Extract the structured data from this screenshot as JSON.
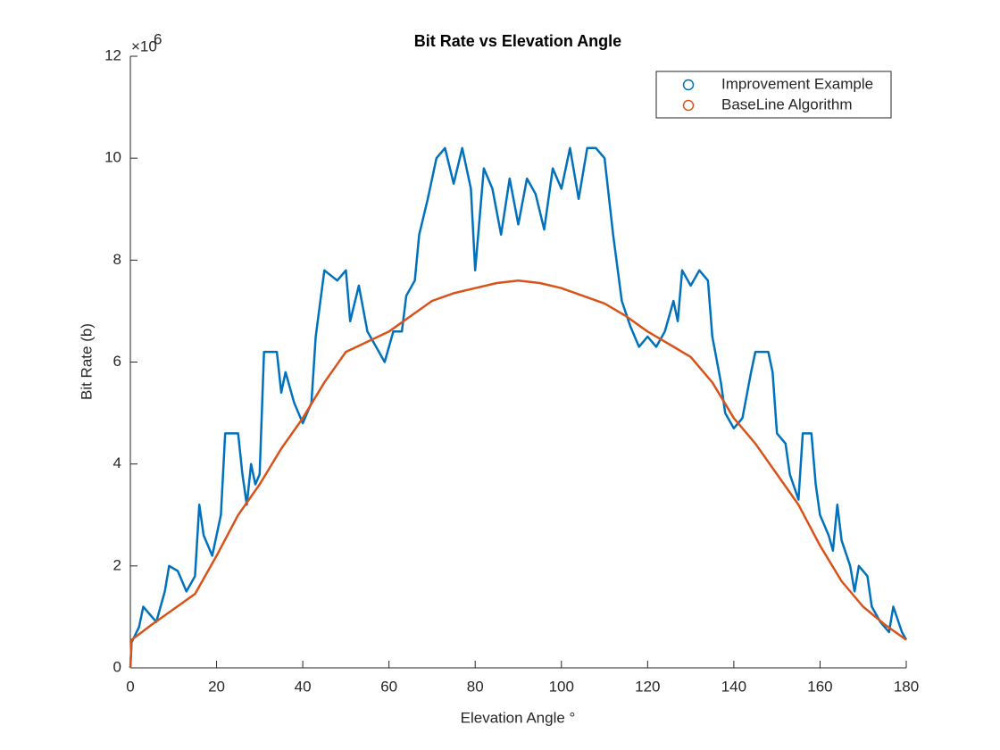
{
  "chart_data": {
    "type": "line",
    "title": "Bit Rate vs Elevation Angle",
    "x_label": "Elevation Angle °",
    "y_label": "Bit Rate (b)",
    "y_exponent": {
      "base": "×10",
      "power": "6"
    },
    "xlim": [
      0,
      180
    ],
    "xticks": [
      0,
      20,
      40,
      60,
      80,
      100,
      120,
      140,
      160,
      180
    ],
    "ylim": [
      0,
      12
    ],
    "yticks": [
      0,
      2,
      4,
      6,
      8,
      10,
      12
    ],
    "legend": "top-right",
    "series": [
      {
        "name": "Improvement Example",
        "color": "#0072bd",
        "x": [
          0,
          0.3,
          2,
          3,
          4,
          6,
          8,
          9,
          11,
          13,
          15,
          16,
          17,
          19,
          21,
          22,
          25,
          26,
          27,
          28,
          29,
          30,
          31,
          34,
          35,
          36,
          38,
          40,
          42,
          43,
          45,
          48,
          50,
          51,
          53,
          55,
          57,
          59,
          61,
          63,
          64,
          66,
          67,
          69,
          71,
          73,
          75,
          77,
          79,
          80,
          82,
          84,
          86,
          88,
          90,
          92,
          94,
          96,
          98,
          100,
          102,
          104,
          106,
          108,
          110,
          112,
          114,
          116,
          118,
          120,
          122,
          124,
          126,
          127,
          128,
          130,
          132,
          134,
          135,
          137,
          138,
          140,
          142,
          144,
          145,
          148,
          149,
          150,
          152,
          153,
          155,
          156,
          158,
          159,
          160,
          162,
          163,
          164,
          165,
          167,
          168,
          169,
          171,
          172,
          174,
          176,
          177,
          179,
          180
        ],
        "values": [
          0,
          0.5,
          0.8,
          1.2,
          1.1,
          0.9,
          1.5,
          2.0,
          1.9,
          1.5,
          1.8,
          3.2,
          2.6,
          2.2,
          3.0,
          4.6,
          4.6,
          3.8,
          3.2,
          4.0,
          3.6,
          3.8,
          6.2,
          6.2,
          5.4,
          5.8,
          5.2,
          4.8,
          5.2,
          6.5,
          7.8,
          7.6,
          7.8,
          6.8,
          7.5,
          6.6,
          6.3,
          6.0,
          6.6,
          6.6,
          7.3,
          7.6,
          8.5,
          9.2,
          10.0,
          10.2,
          9.5,
          10.2,
          9.4,
          7.8,
          9.8,
          9.4,
          8.5,
          9.6,
          8.7,
          9.6,
          9.3,
          8.6,
          9.8,
          9.4,
          10.2,
          9.2,
          10.2,
          10.2,
          10.0,
          8.5,
          7.2,
          6.7,
          6.3,
          6.5,
          6.3,
          6.6,
          7.2,
          6.8,
          7.8,
          7.5,
          7.8,
          7.6,
          6.5,
          5.6,
          5.0,
          4.7,
          4.9,
          5.8,
          6.2,
          6.2,
          5.8,
          4.6,
          4.4,
          3.8,
          3.3,
          4.6,
          4.6,
          3.6,
          3.0,
          2.6,
          2.3,
          3.2,
          2.5,
          2.0,
          1.5,
          2.0,
          1.8,
          1.2,
          0.9,
          0.7,
          1.2,
          0.7,
          0.55
        ]
      },
      {
        "name": "BaseLine Algorithm",
        "color": "#d95319",
        "x": [
          0,
          0.3,
          5,
          10,
          15,
          20,
          25,
          30,
          35,
          40,
          45,
          50,
          55,
          60,
          65,
          70,
          75,
          80,
          85,
          90,
          95,
          100,
          105,
          110,
          115,
          120,
          125,
          130,
          135,
          140,
          145,
          150,
          155,
          160,
          165,
          170,
          175,
          180
        ],
        "values": [
          0,
          0.55,
          0.85,
          1.15,
          1.45,
          2.2,
          3.0,
          3.6,
          4.3,
          4.9,
          5.6,
          6.2,
          6.4,
          6.6,
          6.9,
          7.2,
          7.35,
          7.45,
          7.55,
          7.6,
          7.55,
          7.45,
          7.3,
          7.15,
          6.9,
          6.6,
          6.35,
          6.1,
          5.6,
          4.9,
          4.4,
          3.8,
          3.2,
          2.4,
          1.7,
          1.2,
          0.85,
          0.55
        ]
      }
    ]
  }
}
